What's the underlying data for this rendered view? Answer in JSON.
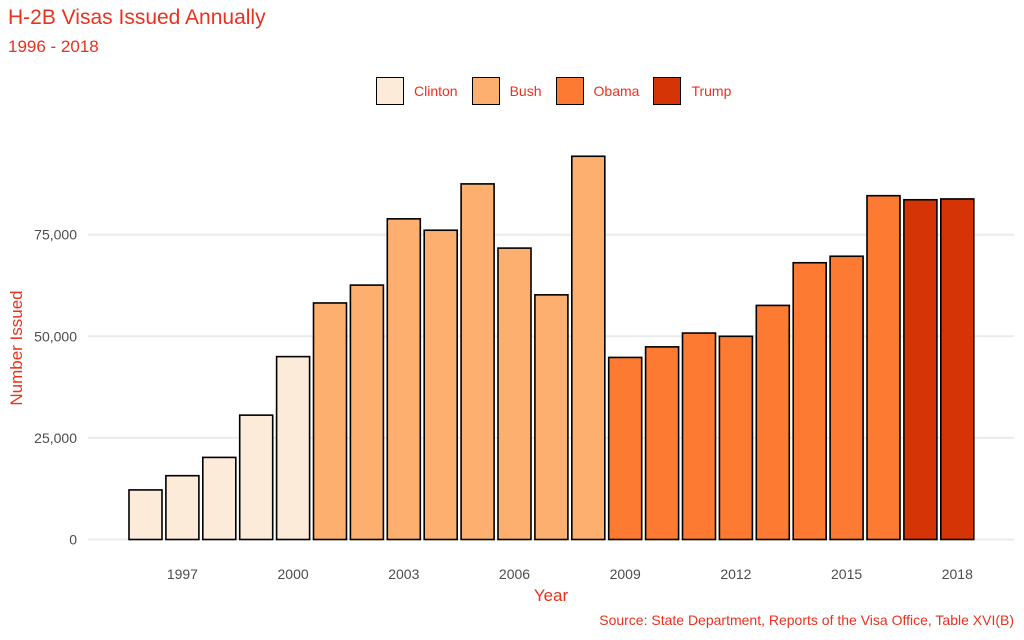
{
  "chart_data": {
    "type": "bar",
    "title": "H-2B Visas Issued Annually",
    "subtitle": "1996 - 2018",
    "xlabel": "Year",
    "ylabel": "Number Issued",
    "caption": "Source: State Department, Reports of the Visa Office, Table XVI(B)",
    "ylim": [
      0,
      100000
    ],
    "y_ticks": [
      0,
      25000,
      50000,
      75000
    ],
    "y_tick_labels": [
      "0",
      "25,000",
      "50,000",
      "75,000"
    ],
    "x_ticks": [
      1997,
      2000,
      2003,
      2006,
      2009,
      2012,
      2015,
      2018
    ],
    "grid": "horizontal major",
    "legend_position": "top",
    "legend": [
      {
        "name": "Clinton",
        "color": "#fdebd9"
      },
      {
        "name": "Bush",
        "color": "#fdaf6f"
      },
      {
        "name": "Obama",
        "color": "#fc7a31"
      },
      {
        "name": "Trump",
        "color": "#d53506"
      }
    ],
    "data": [
      {
        "year": 1996,
        "value": 12200,
        "group": "Clinton"
      },
      {
        "year": 1997,
        "value": 15700,
        "group": "Clinton"
      },
      {
        "year": 1998,
        "value": 20200,
        "group": "Clinton"
      },
      {
        "year": 1999,
        "value": 30600,
        "group": "Clinton"
      },
      {
        "year": 2000,
        "value": 45000,
        "group": "Clinton"
      },
      {
        "year": 2001,
        "value": 58200,
        "group": "Bush"
      },
      {
        "year": 2002,
        "value": 62600,
        "group": "Bush"
      },
      {
        "year": 2003,
        "value": 78900,
        "group": "Bush"
      },
      {
        "year": 2004,
        "value": 76100,
        "group": "Bush"
      },
      {
        "year": 2005,
        "value": 87500,
        "group": "Bush"
      },
      {
        "year": 2006,
        "value": 71700,
        "group": "Bush"
      },
      {
        "year": 2007,
        "value": 60200,
        "group": "Bush"
      },
      {
        "year": 2008,
        "value": 94300,
        "group": "Bush"
      },
      {
        "year": 2009,
        "value": 44800,
        "group": "Obama"
      },
      {
        "year": 2010,
        "value": 47400,
        "group": "Obama"
      },
      {
        "year": 2011,
        "value": 50800,
        "group": "Obama"
      },
      {
        "year": 2012,
        "value": 50000,
        "group": "Obama"
      },
      {
        "year": 2013,
        "value": 57600,
        "group": "Obama"
      },
      {
        "year": 2014,
        "value": 68100,
        "group": "Obama"
      },
      {
        "year": 2015,
        "value": 69700,
        "group": "Obama"
      },
      {
        "year": 2016,
        "value": 84600,
        "group": "Obama"
      },
      {
        "year": 2017,
        "value": 83600,
        "group": "Trump"
      },
      {
        "year": 2018,
        "value": 83800,
        "group": "Trump"
      }
    ]
  }
}
